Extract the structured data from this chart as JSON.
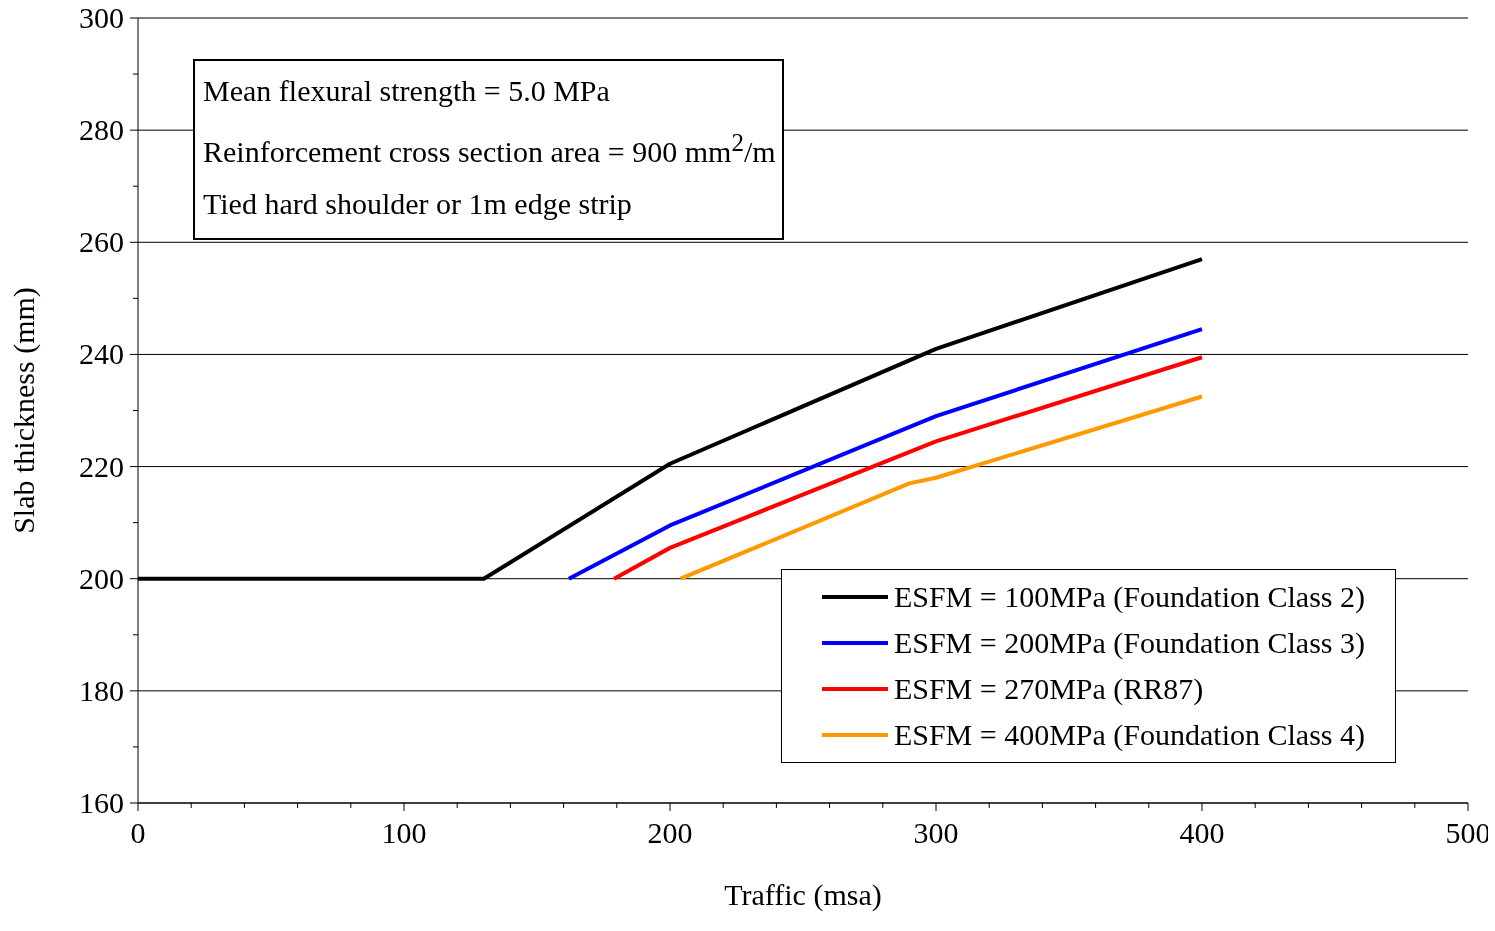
{
  "chart_data": {
    "type": "line",
    "xlabel": "Traffic (msa)",
    "ylabel": "Slab thickness (mm)",
    "annotations": [
      "Mean flexural strength = 5.0 MPa",
      "Reinforcement cross section area = 900 mm$^{2}$/m",
      "Tied hard shoulder or 1m edge strip"
    ],
    "series": [
      {
        "name": "ESFM = 100MPa (Foundation Class 2)",
        "color": "#000000",
        "x": [
          0,
          130,
          200,
          300,
          400
        ],
        "values": [
          200,
          200,
          220.5,
          241,
          257
        ]
      },
      {
        "name": "ESFM = 200MPa (Foundation Class 3)",
        "color": "#0000ff",
        "x": [
          162,
          200,
          300,
          400
        ],
        "values": [
          200,
          209.5,
          229,
          244.5
        ]
      },
      {
        "name": "ESFM = 270MPa (RR87)",
        "color": "#ff0000",
        "x": [
          179,
          200,
          300,
          400
        ],
        "values": [
          200,
          205.5,
          224.5,
          239.5
        ]
      },
      {
        "name": "ESFM = 400MPa (Foundation Class 4)",
        "color": "#ff9900",
        "x": [
          204,
          290,
          300,
          400
        ],
        "values": [
          200,
          217,
          218,
          232.5
        ]
      }
    ],
    "xlim": [
      0,
      500
    ],
    "ylim": [
      160,
      300
    ],
    "xticks": [
      0,
      {
        "value": 20,
        "label": null
      },
      {
        "value": 40,
        "label": null
      },
      {
        "value": 60,
        "label": null
      },
      {
        "value": 80,
        "label": null
      },
      100,
      {
        "value": 120,
        "label": null
      },
      {
        "value": 140,
        "label": null
      },
      {
        "value": 160,
        "label": null
      },
      {
        "value": 180,
        "label": null
      },
      200,
      {
        "value": 220,
        "label": null
      },
      {
        "value": 240,
        "label": null
      },
      {
        "value": 260,
        "label": null
      },
      {
        "value": 280,
        "label": null
      },
      300,
      {
        "value": 320,
        "label": null
      },
      {
        "value": 340,
        "label": null
      },
      {
        "value": 360,
        "label": null
      },
      {
        "value": 380,
        "label": null
      },
      400,
      {
        "value": 420,
        "label": null
      },
      {
        "value": 440,
        "label": null
      },
      {
        "value": 460,
        "label": null
      },
      {
        "value": 480,
        "label": null
      },
      500
    ],
    "yticks": [
      160,
      {
        "value": 170,
        "label": null
      },
      180,
      {
        "value": 190,
        "label": null
      },
      200,
      {
        "value": 210,
        "label": null
      },
      220,
      {
        "value": 230,
        "label": null
      },
      240,
      {
        "value": 250,
        "label": null
      },
      260,
      {
        "value": 270,
        "label": null
      },
      280,
      {
        "value": 290,
        "label": null
      },
      300
    ],
    "grid": "y",
    "legend": "bottom right",
    "marker": "none",
    "line_style": "solid"
  }
}
